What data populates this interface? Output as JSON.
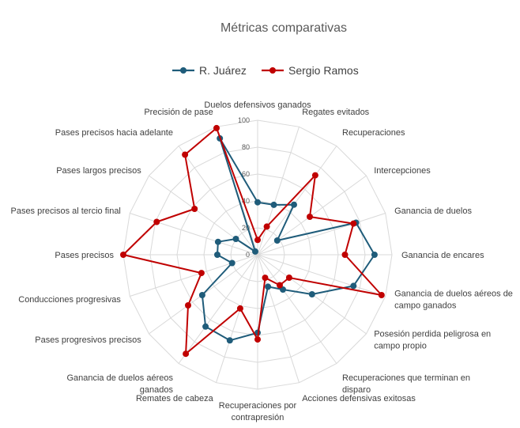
{
  "chart_data": {
    "type": "radar",
    "title": "Métricas comparativas",
    "rlim": [
      0,
      100
    ],
    "ticks": [
      0,
      20,
      40,
      60,
      80,
      100
    ],
    "grid": true,
    "legend_position": "top",
    "axes": [
      [
        "Duelos defensivos ganados"
      ],
      [
        "Regates evitados"
      ],
      [
        "Recuperaciones"
      ],
      [
        "Intercepciones"
      ],
      [
        "Ganancia de duelos"
      ],
      [
        "Ganancia de encares"
      ],
      [
        "Ganancia de duelos aéreos de",
        "campo ganados"
      ],
      [
        "Posesión perdida peligrosa en",
        "campo propio"
      ],
      [
        "Recuperaciones que terminan en",
        "disparo"
      ],
      [
        "Acciones defensivas exitosas"
      ],
      [
        "Recuperaciones por",
        "contrapresión"
      ],
      [
        "Remates de cabeza"
      ],
      [
        "Ganancia de duelos aéreos",
        "ganados"
      ],
      [
        "Pases progresivos precisos"
      ],
      [
        "Conducciones progresivas"
      ],
      [
        "Pases precisos"
      ],
      [
        "Pases precisos al tercio final"
      ],
      [
        "Pases largos precisos"
      ],
      [
        "Pases precisos hacia adelante"
      ],
      [
        "Precisión de pase"
      ]
    ],
    "series": [
      {
        "name": "R. Juárez",
        "color": "#1f5c7a",
        "values": [
          39,
          39,
          46,
          18,
          77,
          87,
          75,
          50,
          32,
          25,
          58,
          67,
          66,
          51,
          20,
          30,
          31,
          20,
          3,
          91
        ]
      },
      {
        "name": "Sergio Ramos",
        "color": "#c00000",
        "values": [
          11,
          22,
          73,
          48,
          75,
          65,
          97,
          29,
          28,
          18,
          63,
          42,
          91,
          64,
          44,
          100,
          79,
          58,
          92,
          99
        ]
      }
    ]
  }
}
